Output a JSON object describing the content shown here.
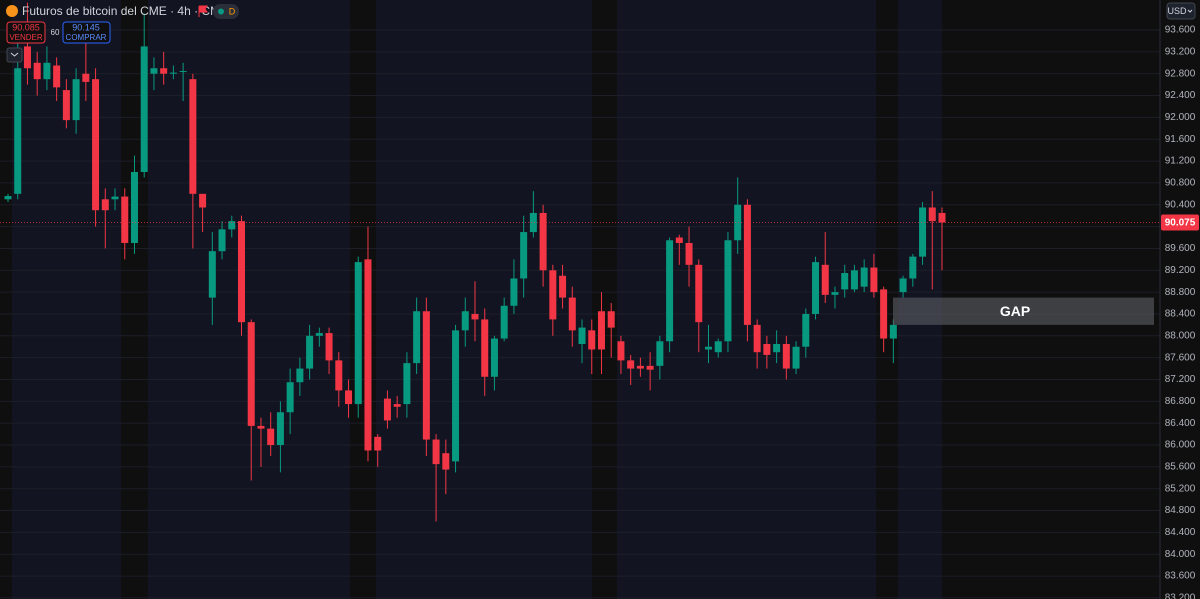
{
  "chart_data": {
    "type": "candlestick",
    "title": "Futuros de bitcoin del CME · 4h · CME",
    "badge": "D",
    "sell": {
      "price": "90.085",
      "label": "VENDER"
    },
    "spread": "60",
    "buy": {
      "price": "90.145",
      "label": "COMPRAR"
    },
    "currency": "USD",
    "last_price": {
      "value": 90075,
      "label": "90.075"
    },
    "gap": {
      "label": "GAP",
      "top": 88700,
      "bottom": 88200
    },
    "up_color": "#089981",
    "down_color": "#f23645",
    "grid": true,
    "ylim": [
      83180,
      94150
    ],
    "yticks": [
      {
        "value": 93600,
        "label": "93.600"
      },
      {
        "value": 93200,
        "label": "93.200"
      },
      {
        "value": 92800,
        "label": "92.800"
      },
      {
        "value": 92400,
        "label": "92.400"
      },
      {
        "value": 92000,
        "label": "92.000"
      },
      {
        "value": 91600,
        "label": "91.600"
      },
      {
        "value": 91200,
        "label": "91.200"
      },
      {
        "value": 90800,
        "label": "90.800"
      },
      {
        "value": 90400,
        "label": "90.400"
      },
      {
        "value": 90000,
        "label": "90.000"
      },
      {
        "value": 89600,
        "label": "89.600"
      },
      {
        "value": 89200,
        "label": "89.200"
      },
      {
        "value": 88800,
        "label": "88.800"
      },
      {
        "value": 88400,
        "label": "88.400"
      },
      {
        "value": 88000,
        "label": "88.000"
      },
      {
        "value": 87600,
        "label": "87.600"
      },
      {
        "value": 87200,
        "label": "87.200"
      },
      {
        "value": 86800,
        "label": "86.800"
      },
      {
        "value": 86400,
        "label": "86.400"
      },
      {
        "value": 86000,
        "label": "86.000"
      },
      {
        "value": 85600,
        "label": "85.600"
      },
      {
        "value": 85200,
        "label": "85.200"
      },
      {
        "value": 84800,
        "label": "84.800"
      },
      {
        "value": 84400,
        "label": "84.400"
      },
      {
        "value": 84000,
        "label": "84.000"
      },
      {
        "value": 83600,
        "label": "83.600"
      },
      {
        "value": 83200,
        "label": "83.200"
      }
    ],
    "open": [
      90500,
      90600,
      93300,
      93000,
      92700,
      92950,
      92500,
      91950,
      92800,
      92700,
      90500,
      90500,
      90550,
      89700,
      91000,
      92800,
      92900,
      92800,
      92850,
      92700,
      90600,
      88700,
      89550,
      89950,
      90100,
      88250,
      86350,
      86300,
      86000,
      86600,
      87150,
      87400,
      88000,
      88050,
      87550,
      87000,
      86750,
      89400,
      86150,
      86850,
      86750,
      86750,
      87500,
      88450,
      86100,
      85850,
      85700,
      88100,
      88400,
      88300,
      87250,
      87950,
      88550,
      89050,
      89900,
      90250,
      89200,
      89100,
      88700,
      87850,
      88100,
      88450,
      88450,
      87900,
      87550,
      87450,
      87450,
      87450,
      87900,
      89800,
      89700,
      89300,
      87750,
      87700,
      87900,
      89750,
      90400,
      88200,
      87850,
      87700,
      87850,
      87400,
      87800,
      88400,
      89300,
      88750,
      88850,
      88850,
      88900,
      89250,
      88850,
      87950,
      88800,
      89050,
      89450,
      90350,
      90250
    ],
    "high": [
      90600,
      93500,
      94100,
      93200,
      93300,
      93100,
      92700,
      92900,
      93600,
      92900,
      90700,
      90700,
      90700,
      91300,
      93900,
      93100,
      93200,
      92950,
      93000,
      92800,
      90600,
      89900,
      90100,
      90200,
      90200,
      88300,
      86500,
      86600,
      86800,
      87400,
      87600,
      88200,
      88150,
      88150,
      87700,
      87200,
      89450,
      90000,
      86200,
      87000,
      86900,
      87700,
      88700,
      88700,
      86200,
      86100,
      88200,
      88700,
      89000,
      88500,
      88000,
      88700,
      89400,
      90200,
      90650,
      90400,
      89300,
      89300,
      88900,
      88300,
      88300,
      88800,
      88600,
      88000,
      87650,
      87600,
      87700,
      88000,
      89800,
      89850,
      90000,
      89400,
      88200,
      87950,
      89900,
      90900,
      90500,
      88300,
      88000,
      88100,
      88000,
      87900,
      88500,
      89450,
      89900,
      88900,
      89300,
      89300,
      89400,
      89500,
      88900,
      88300,
      89100,
      89500,
      90450,
      90650,
      90350
    ],
    "low": [
      90450,
      90500,
      92600,
      92400,
      92500,
      92300,
      91800,
      91700,
      92300,
      90000,
      89600,
      90300,
      89400,
      89500,
      90900,
      92500,
      92600,
      92700,
      92300,
      89600,
      89900,
      88200,
      89400,
      89800,
      88000,
      85350,
      85600,
      85800,
      85500,
      86200,
      86900,
      87200,
      87800,
      87300,
      86700,
      86500,
      86500,
      85700,
      85600,
      86300,
      86500,
      86500,
      87300,
      85800,
      84600,
      85100,
      85500,
      87800,
      87900,
      86900,
      87000,
      87900,
      88400,
      88700,
      89800,
      88900,
      88000,
      88500,
      87800,
      87500,
      87300,
      87300,
      87600,
      87300,
      87100,
      87250,
      87000,
      87200,
      87700,
      89300,
      88900,
      87700,
      87500,
      87600,
      87700,
      89500,
      87900,
      87400,
      87400,
      87500,
      87200,
      87300,
      87600,
      88300,
      88600,
      88500,
      88700,
      88800,
      88800,
      88700,
      87700,
      87500,
      88700,
      88900,
      89300,
      88850,
      89200
    ],
    "close": [
      90560,
      92900,
      92900,
      92700,
      93000,
      92550,
      91950,
      92700,
      92650,
      90300,
      90300,
      90550,
      89700,
      91000,
      93300,
      92900,
      92800,
      92820,
      92850,
      90600,
      90350,
      89550,
      89950,
      90100,
      88250,
      86350,
      86300,
      86000,
      86600,
      87150,
      87400,
      88000,
      88050,
      87550,
      87000,
      86750,
      89350,
      85900,
      85900,
      86450,
      86700,
      87500,
      88450,
      86100,
      85650,
      85550,
      88100,
      88450,
      88300,
      87250,
      87950,
      88550,
      89050,
      89900,
      90250,
      89200,
      88300,
      88700,
      88100,
      88150,
      87750,
      87750,
      88150,
      87550,
      87400,
      87400,
      87380,
      87900,
      89750,
      89700,
      89300,
      88250,
      87800,
      87900,
      89750,
      90400,
      88200,
      87700,
      87650,
      87850,
      87400,
      87800,
      88400,
      89350,
      88750,
      88800,
      89150,
      89200,
      89250,
      88800,
      87950,
      88200,
      89050,
      89450,
      90350,
      90100,
      90075
    ]
  }
}
